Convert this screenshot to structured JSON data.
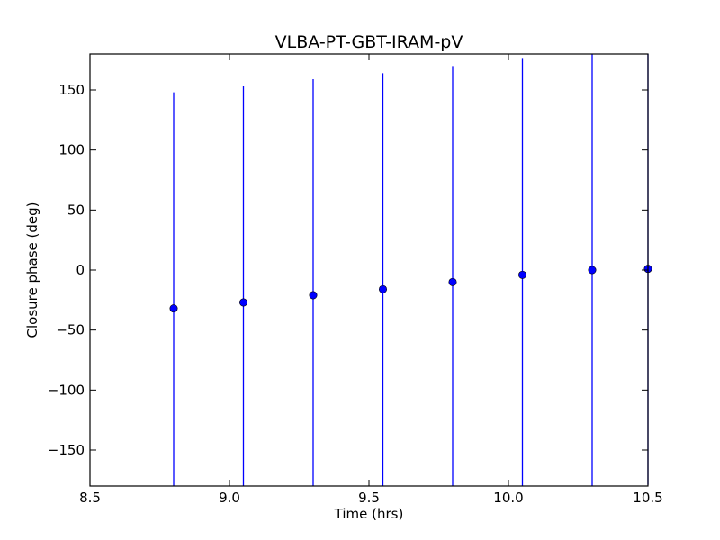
{
  "chart_data": {
    "type": "scatter",
    "title": "VLBA-PT-GBT-IRAM-pV",
    "xlabel": "Time (hrs)",
    "ylabel": "Closure phase (deg)",
    "xlim": [
      8.5,
      10.5
    ],
    "ylim": [
      -180,
      180
    ],
    "xticks": [
      8.5,
      9.0,
      9.5,
      10.0,
      10.5
    ],
    "xtick_labels": [
      "8.5",
      "9.0",
      "9.5",
      "10.0",
      "10.5"
    ],
    "yticks": [
      -150,
      -100,
      -50,
      0,
      50,
      100,
      150
    ],
    "ytick_labels": [
      "−150",
      "−100",
      "−50",
      "0",
      "50",
      "100",
      "150"
    ],
    "grid": false,
    "series": [
      {
        "color": "#0000ff",
        "points": [
          {
            "x": 8.8,
            "y": -32,
            "yerr": 180
          },
          {
            "x": 9.05,
            "y": -27,
            "yerr": 180
          },
          {
            "x": 9.3,
            "y": -21,
            "yerr": 180
          },
          {
            "x": 9.55,
            "y": -16,
            "yerr": 180
          },
          {
            "x": 9.8,
            "y": -10,
            "yerr": 180
          },
          {
            "x": 10.05,
            "y": -4,
            "yerr": 180
          },
          {
            "x": 10.3,
            "y": 0,
            "yerr": 180
          },
          {
            "x": 10.5,
            "y": 1,
            "yerr": 180
          }
        ]
      }
    ]
  }
}
